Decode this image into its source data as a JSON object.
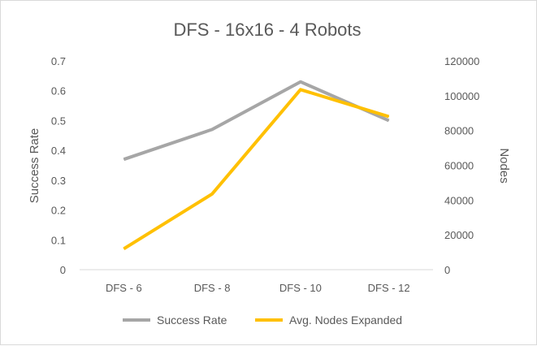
{
  "chart_data": {
    "type": "line",
    "title": "DFS - 16x16 - 4 Robots",
    "categories": [
      "DFS - 6",
      "DFS - 8",
      "DFS - 10",
      "DFS - 12"
    ],
    "series": [
      {
        "name": "Success Rate",
        "axis": "left",
        "color": "#a6a6a6",
        "values": [
          0.37,
          0.47,
          0.63,
          0.5
        ]
      },
      {
        "name": "Avg. Nodes Expanded",
        "axis": "right",
        "color": "#ffc000",
        "values": [
          12000,
          43500,
          103500,
          88000
        ]
      }
    ],
    "y_left": {
      "label": "Success Rate",
      "range": [
        0,
        0.7
      ],
      "ticks": [
        "0",
        "0.1",
        "0.2",
        "0.3",
        "0.4",
        "0.5",
        "0.6",
        "0.7"
      ]
    },
    "y_right": {
      "label": "Nodes",
      "range": [
        0,
        120000
      ],
      "ticks": [
        "0",
        "20000",
        "40000",
        "60000",
        "80000",
        "100000",
        "120000"
      ]
    },
    "grid": false,
    "legend_position": "bottom"
  }
}
